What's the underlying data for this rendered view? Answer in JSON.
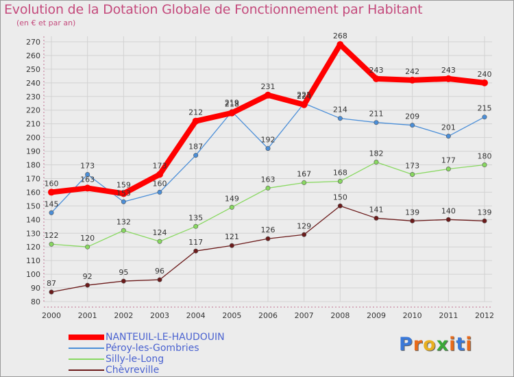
{
  "chart_data": {
    "type": "line",
    "title": "Evolution de la Dotation Globale de Fonctionnement par Habitant",
    "subtitle": "(en € et par an)",
    "xlabel": "",
    "ylabel": "",
    "x": [
      "2000",
      "2001",
      "2002",
      "2003",
      "2004",
      "2005",
      "2006",
      "2007",
      "2008",
      "2009",
      "2010",
      "2011",
      "2012"
    ],
    "ylim": [
      80,
      270
    ],
    "yticks": [
      80,
      90,
      100,
      110,
      120,
      130,
      140,
      150,
      160,
      170,
      180,
      190,
      200,
      210,
      220,
      230,
      240,
      250,
      260,
      270
    ],
    "grid": true,
    "legend_position": "bottom-left",
    "series": [
      {
        "name": "NANTEUIL-LE-HAUDOUIN",
        "color": "#ff0000",
        "values": [
          160,
          163,
          159,
          173,
          212,
          218,
          231,
          224,
          268,
          243,
          242,
          243,
          240
        ],
        "labels": [
          "160",
          "163",
          "159",
          "173",
          "212",
          "218",
          "231",
          "224",
          "268",
          "243",
          "242",
          "243",
          "240"
        ]
      },
      {
        "name": "Péroy-les-Gombries",
        "color": "#4a8ed8",
        "values": [
          145,
          173,
          153,
          160,
          187,
          219,
          192,
          225,
          214,
          211,
          209,
          201,
          215
        ],
        "labels": [
          "145",
          "173",
          "153",
          "160",
          "187",
          "219",
          "192",
          "225",
          "214",
          "211",
          "209",
          "201",
          "215"
        ]
      },
      {
        "name": "Silly-le-Long",
        "color": "#88d860",
        "values": [
          122,
          120,
          132,
          124,
          135,
          149,
          163,
          167,
          168,
          182,
          173,
          177,
          180
        ],
        "labels": [
          "122",
          "120",
          "132",
          "124",
          "135",
          "149",
          "163",
          "167",
          "168",
          "182",
          "173",
          "177",
          "180"
        ]
      },
      {
        "name": "Chèvreville",
        "color": "#6b1a1a",
        "values": [
          87,
          92,
          95,
          96,
          117,
          121,
          126,
          129,
          150,
          141,
          139,
          140,
          139
        ],
        "labels": [
          "87",
          "92",
          "95",
          "96",
          "117",
          "121",
          "126",
          "129",
          "150",
          "141",
          "139",
          "140",
          "139"
        ]
      }
    ]
  },
  "logo": {
    "text": "Proxiti",
    "letters": [
      {
        "ch": "P",
        "color": "#3a78d8"
      },
      {
        "ch": "r",
        "color": "#e86a1a"
      },
      {
        "ch": "o",
        "color": "#e8b020"
      },
      {
        "ch": "x",
        "color": "#3aa838"
      },
      {
        "ch": "i",
        "color": "#e86a1a"
      },
      {
        "ch": "t",
        "color": "#3a78d8"
      },
      {
        "ch": "i",
        "color": "#e86a1a"
      }
    ]
  }
}
